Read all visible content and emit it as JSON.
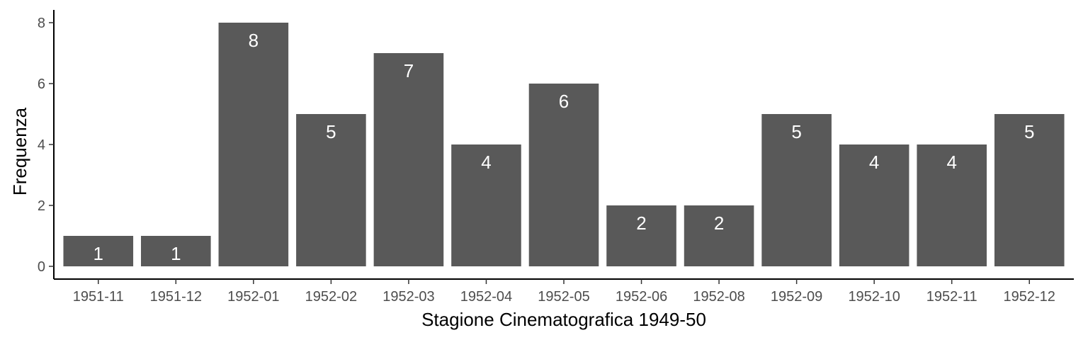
{
  "chart_data": {
    "type": "bar",
    "title": "",
    "xlabel": "Stagione Cinematografica 1949-50",
    "ylabel": "Frequenza",
    "categories": [
      "1951-11",
      "1951-12",
      "1952-01",
      "1952-02",
      "1952-03",
      "1952-04",
      "1952-05",
      "1952-06",
      "1952-08",
      "1952-09",
      "1952-10",
      "1952-11",
      "1952-12"
    ],
    "values": [
      1,
      1,
      8,
      5,
      7,
      4,
      6,
      2,
      2,
      5,
      4,
      4,
      5
    ],
    "yticks": [
      "0",
      "2",
      "4",
      "6",
      "8"
    ],
    "ylim": [
      0,
      8.4
    ],
    "grid": false,
    "bar_color": "#595959",
    "label_color": "#ffffff"
  }
}
